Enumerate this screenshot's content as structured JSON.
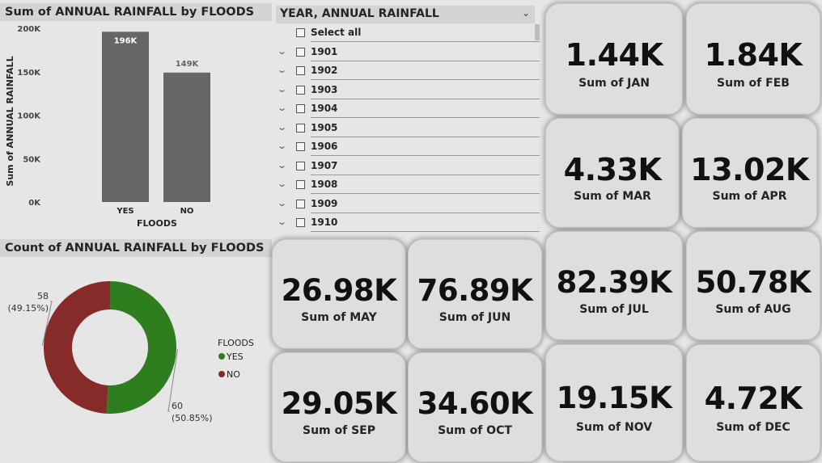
{
  "bar_chart": {
    "title": "Sum of ANNUAL RAINFALL by FLOODS",
    "chart_data": {
      "type": "bar",
      "title": "Sum of ANNUAL RAINFALL by FLOODS",
      "xlabel": "FLOODS",
      "ylabel": "Sum of ANNUAL RAINFALL",
      "categories": [
        "YES",
        "NO"
      ],
      "values": [
        196000,
        149000
      ],
      "data_labels": [
        "196K",
        "149K"
      ],
      "ylim": [
        0,
        200000
      ],
      "yticks": [
        0,
        50000,
        100000,
        150000,
        200000
      ],
      "ytick_labels": [
        "0K",
        "50K",
        "100K",
        "150K",
        "200K"
      ],
      "bar_color": "#666666"
    }
  },
  "donut_chart": {
    "title": "Count of ANNUAL RAINFALL by FLOODS",
    "chart_data": {
      "type": "pie",
      "title": "Count of ANNUAL RAINFALL by FLOODS",
      "legend_title": "FLOODS",
      "legend_position": "right",
      "categories": [
        "YES",
        "NO"
      ],
      "values": [
        60,
        58
      ],
      "percents": [
        "(50.85%)",
        "(49.15%)"
      ],
      "colors": [
        "#2e7d1f",
        "#862a2a"
      ]
    }
  },
  "slicer": {
    "title": "YEAR, ANNUAL RAINFALL",
    "select_all": "Select all",
    "items": [
      "1901",
      "1902",
      "1903",
      "1904",
      "1905",
      "1906",
      "1907",
      "1908",
      "1909",
      "1910"
    ]
  },
  "cards": [
    {
      "value": "1.44K",
      "label": "Sum of JAN"
    },
    {
      "value": "1.84K",
      "label": "Sum of FEB"
    },
    {
      "value": "4.33K",
      "label": "Sum of MAR"
    },
    {
      "value": "13.02K",
      "label": "Sum of APR"
    },
    {
      "value": "26.98K",
      "label": "Sum of MAY"
    },
    {
      "value": "76.89K",
      "label": "Sum of JUN"
    },
    {
      "value": "82.39K",
      "label": "Sum of JUL"
    },
    {
      "value": "50.78K",
      "label": "Sum of AUG"
    },
    {
      "value": "29.05K",
      "label": "Sum of SEP"
    },
    {
      "value": "34.60K",
      "label": "Sum of OCT"
    },
    {
      "value": "19.15K",
      "label": "Sum of NOV"
    },
    {
      "value": "4.72K",
      "label": "Sum of DEC"
    }
  ]
}
